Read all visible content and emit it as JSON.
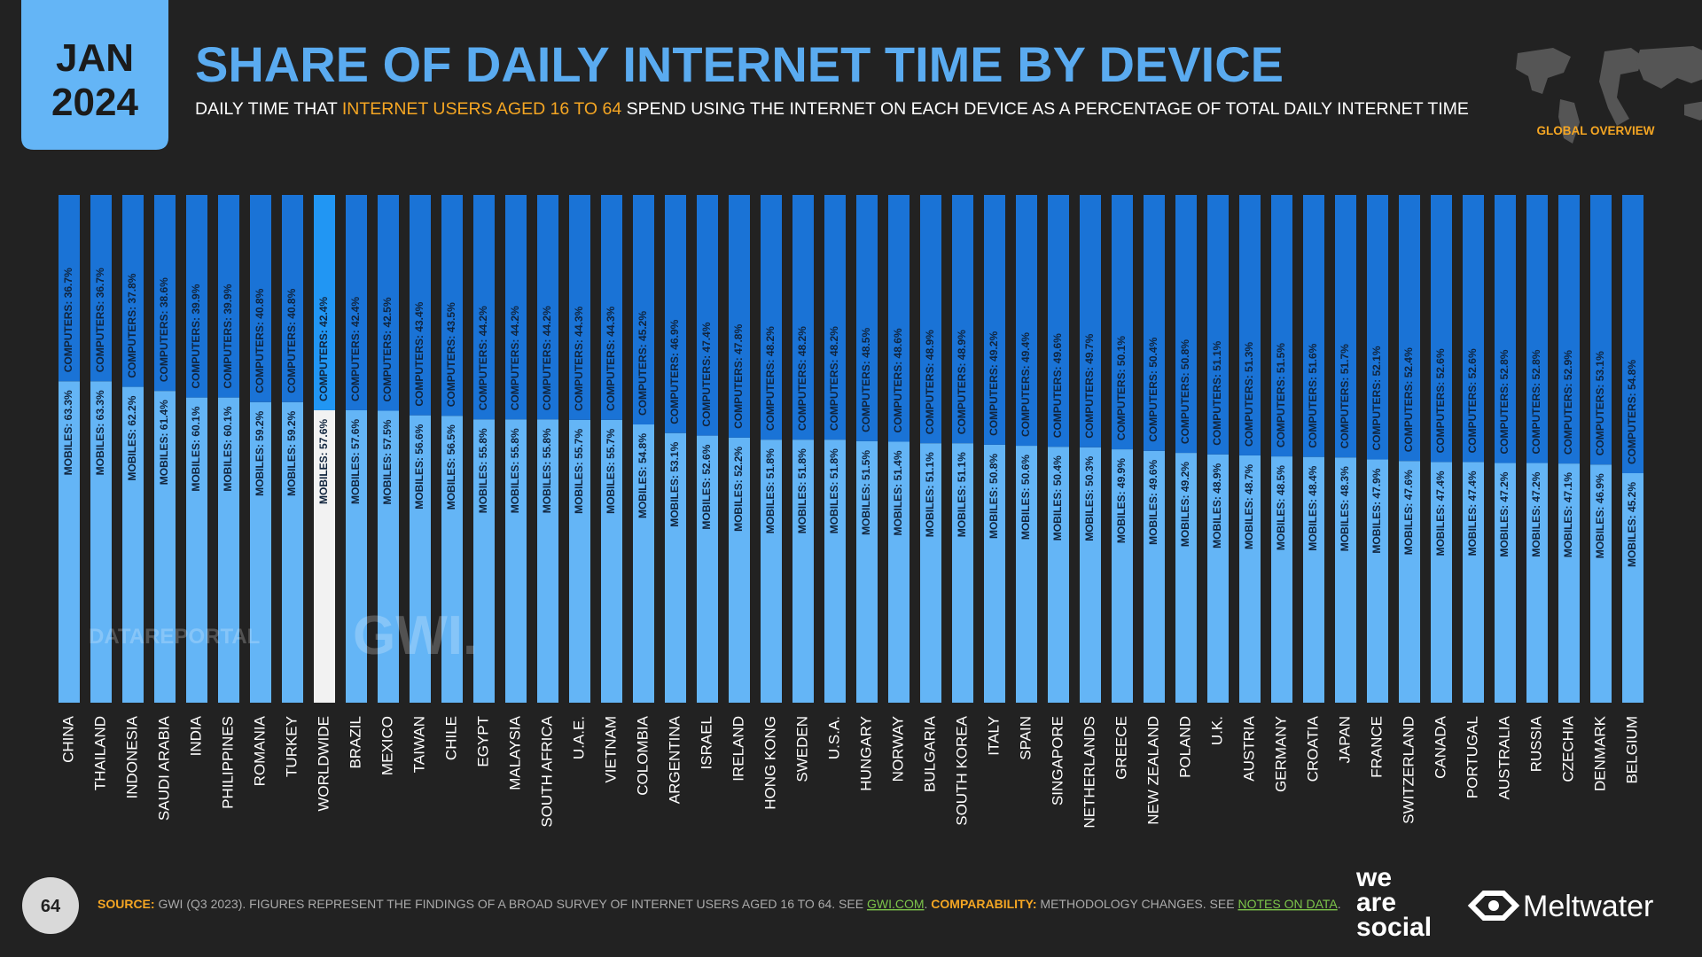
{
  "header": {
    "month": "JAN",
    "year": "2024",
    "title": "SHARE OF DAILY INTERNET TIME BY DEVICE",
    "subtitle": [
      "DAILY TIME THAT ",
      "INTERNET USERS AGED 16 TO 64",
      " SPEND USING THE INTERNET ON EACH DEVICE AS A PERCENTAGE OF TOTAL DAILY INTERNET TIME"
    ],
    "badge": "GLOBAL OVERVIEW"
  },
  "chart_data": {
    "type": "stacked_bar",
    "categories": [
      "CHINA",
      "THAILAND",
      "INDONESIA",
      "SAUDI ARABIA",
      "INDIA",
      "PHILIPPINES",
      "ROMANIA",
      "TURKEY",
      "WORLDWIDE",
      "BRAZIL",
      "MEXICO",
      "TAIWAN",
      "CHILE",
      "EGYPT",
      "MALAYSIA",
      "SOUTH AFRICA",
      "U.A.E.",
      "VIETNAM",
      "COLOMBIA",
      "ARGENTINA",
      "ISRAEL",
      "IRELAND",
      "HONG KONG",
      "SWEDEN",
      "U.S.A.",
      "HUNGARY",
      "NORWAY",
      "BULGARIA",
      "SOUTH KOREA",
      "ITALY",
      "SPAIN",
      "SINGAPORE",
      "NETHERLANDS",
      "GREECE",
      "NEW ZEALAND",
      "POLAND",
      "U.K.",
      "AUSTRIA",
      "GERMANY",
      "CROATIA",
      "JAPAN",
      "FRANCE",
      "SWITZERLAND",
      "CANADA",
      "PORTUGAL",
      "AUSTRALIA",
      "RUSSIA",
      "CZECHIA",
      "DENMARK",
      "BELGIUM"
    ],
    "series": [
      {
        "color": "#64b5f6",
        "values": [
          63.3,
          63.3,
          62.2,
          61.4,
          60.1,
          60.1,
          59.2,
          59.2,
          57.6,
          57.6,
          57.5,
          56.6,
          56.5,
          55.8,
          55.8,
          55.8,
          55.7,
          55.7,
          54.8,
          53.1,
          52.6,
          52.2,
          51.8,
          51.8,
          51.8,
          51.5,
          51.4,
          51.1,
          51.1,
          50.8,
          50.6,
          50.4,
          50.3,
          49.9,
          49.6,
          49.2,
          48.9,
          48.7,
          48.5,
          48.4,
          48.3,
          47.9,
          47.6,
          47.4,
          47.4,
          47.2,
          47.2,
          47.1,
          46.9,
          45.2
        ],
        "value_labels": [
          "MOBILES: 63.3%",
          "MOBILES: 63.3%",
          "MOBILES: 62.2%",
          "MOBILES: 61.4%",
          "MOBILES: 60.1%",
          "MOBILES: 60.1%",
          "MOBILES: 59.2%",
          "MOBILES: 59.2%",
          "MOBILES: 57.6%",
          "MOBILES: 57.6%",
          "MOBILES: 57.5%",
          "MOBILES: 56.6%",
          "MOBILES: 56.5%",
          "MOBILES: 55.8%",
          "MOBILES: 55.8%",
          "MOBILES: 55.8%",
          "MOBILES: 55.7%",
          "MOBILES: 55.7%",
          "MOBILES: 54.8%",
          "MOBILES: 53.1%",
          "MOBILES: 52.6%",
          "MOBILES: 52.2%",
          "MOBILES: 51.8%",
          "MOBILES: 51.8%",
          "MOBILES: 51.8%",
          "MOBILES: 51.5%",
          "MOBILES: 51.4%",
          "MOBILES: 51.1%",
          "MOBILES: 51.1%",
          "MOBILES: 50.8%",
          "MOBILES: 50.6%",
          "MOBILES: 50.4%",
          "MOBILES: 50.3%",
          "MOBILES: 49.9%",
          "MOBILES: 49.6%",
          "MOBILES: 49.2%",
          "MOBILES: 48.9%",
          "MOBILES: 48.7%",
          "MOBILES: 48.5%",
          "MOBILES: 48.4%",
          "MOBILES: 48.3%",
          "MOBILES: 47.9%",
          "MOBILES: 47.6%",
          "MOBILES: 47.4%",
          "MOBILES: 47.4%",
          "MOBILES: 47.2%",
          "MOBILES: 47.2%",
          "MOBILES: 47.1%",
          "MOBILES: 46.9%",
          "MOBILES: 45.2%"
        ]
      },
      {
        "color": "#1a73d6",
        "values": [
          36.7,
          36.7,
          37.8,
          38.6,
          39.9,
          39.9,
          40.8,
          40.8,
          42.4,
          42.4,
          42.5,
          43.4,
          43.5,
          44.2,
          44.2,
          44.2,
          44.3,
          44.3,
          45.2,
          46.9,
          47.4,
          47.8,
          48.2,
          48.2,
          48.2,
          48.5,
          48.6,
          48.9,
          48.9,
          49.2,
          49.4,
          49.6,
          49.7,
          50.1,
          50.4,
          50.8,
          51.1,
          51.3,
          51.5,
          51.6,
          51.7,
          52.1,
          52.4,
          52.6,
          52.6,
          52.8,
          52.8,
          52.9,
          53.1,
          54.8
        ],
        "value_labels": [
          "COMPUTERS: 36.7%",
          "COMPUTERS: 36.7%",
          "COMPUTERS: 37.8%",
          "COMPUTERS: 38.6%",
          "COMPUTERS: 39.9%",
          "COMPUTERS: 39.9%",
          "COMPUTERS: 40.8%",
          "COMPUTERS: 40.8%",
          "COMPUTERS: 42.4%",
          "COMPUTERS: 42.4%",
          "COMPUTERS: 42.5%",
          "COMPUTERS: 43.4%",
          "COMPUTERS: 43.5%",
          "COMPUTERS: 44.2%",
          "COMPUTERS: 44.2%",
          "COMPUTERS: 44.2%",
          "COMPUTERS: 44.3%",
          "COMPUTERS: 44.3%",
          "COMPUTERS: 45.2%",
          "COMPUTERS: 46.9%",
          "COMPUTERS: 47.4%",
          "COMPUTERS: 47.8%",
          "COMPUTERS: 48.2%",
          "COMPUTERS: 48.2%",
          "COMPUTERS: 48.2%",
          "COMPUTERS: 48.5%",
          "COMPUTERS: 48.6%",
          "COMPUTERS: 48.9%",
          "COMPUTERS: 48.9%",
          "COMPUTERS: 49.2%",
          "COMPUTERS: 49.4%",
          "COMPUTERS: 49.6%",
          "COMPUTERS: 49.7%",
          "COMPUTERS: 50.1%",
          "COMPUTERS: 50.4%",
          "COMPUTERS: 50.8%",
          "COMPUTERS: 51.1%",
          "COMPUTERS: 51.3%",
          "COMPUTERS: 51.5%",
          "COMPUTERS: 51.6%",
          "COMPUTERS: 51.7%",
          "COMPUTERS: 52.1%",
          "COMPUTERS: 52.4%",
          "COMPUTERS: 52.6%",
          "COMPUTERS: 52.6%",
          "COMPUTERS: 52.8%",
          "COMPUTERS: 52.8%",
          "COMPUTERS: 52.9%",
          "COMPUTERS: 53.1%",
          "COMPUTERS: 54.8%"
        ]
      }
    ],
    "highlight": {
      "index": 8,
      "colors": [
        "#f2f2f2",
        "#2196f3"
      ]
    },
    "ylim": [
      0,
      100
    ]
  },
  "watermarks": [
    "DATAREPORTAL",
    "GWI."
  ],
  "footer": {
    "page": "64",
    "source": [
      "SOURCE:",
      " GWI (Q3 2023). FIGURES REPRESENT THE FINDINGS OF A BROAD SURVEY OF INTERNET USERS AGED 16 TO 64. SEE ",
      "GWI.COM",
      ". ",
      "COMPARABILITY:",
      " METHODOLOGY CHANGES. SEE ",
      "NOTES ON DATA",
      "."
    ],
    "logos": [
      "we",
      "are",
      "social",
      "Meltwater"
    ]
  }
}
